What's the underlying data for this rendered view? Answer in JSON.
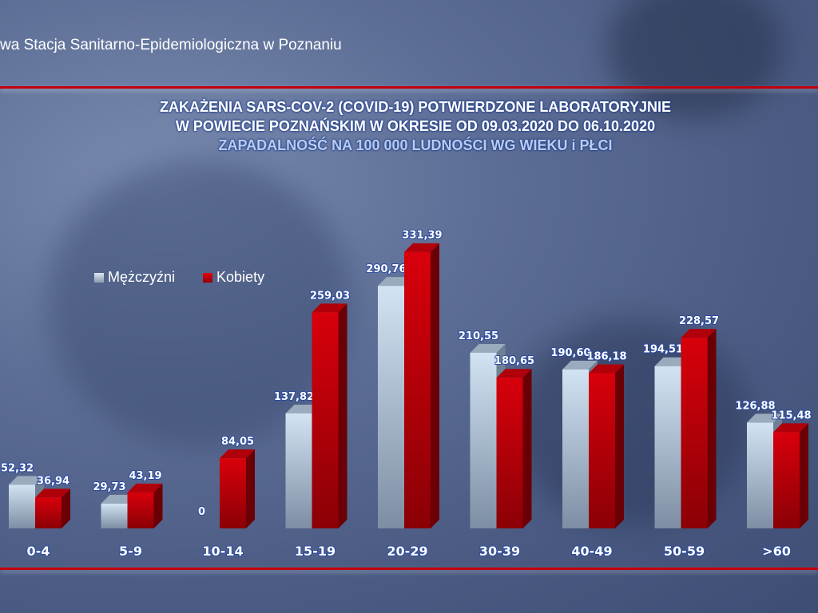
{
  "header": {
    "org_name": "wa Stacja Sanitarno-Epidemiologiczna w Poznaniu"
  },
  "colors": {
    "men": "#b7cde3",
    "women": "#c8000a",
    "rule": "#c4000c"
  },
  "chart_data": {
    "type": "bar",
    "title": [
      "ZAKAŻENIA SARS-COV-2 (COVID-19) POTWIERDZONE LABORATORYJNIE",
      "W POWIECIE POZNAŃSKIM W OKRESIE OD 09.03.2020 DO 06.10.2020"
    ],
    "subtitle": "ZAPADALNOŚĆ NA 100 000 LUDNOŚCI WG WIEKU i PŁCI",
    "categories": [
      "0-4",
      "5-9",
      "10-14",
      "15-19",
      "20-29",
      "30-39",
      "40-49",
      "50-59",
      ">60"
    ],
    "series": [
      {
        "name": "Mężczyźni",
        "values": [
          52.32,
          29.73,
          0,
          137.82,
          290.76,
          210.55,
          190.6,
          194.51,
          126.88
        ],
        "labels": [
          "52,32",
          "29,73",
          "0",
          "137,82",
          "290,76",
          "210,55",
          "190,60",
          "194,51",
          "126,88"
        ]
      },
      {
        "name": "Kobiety",
        "values": [
          36.94,
          43.19,
          84.05,
          259.03,
          331.39,
          180.65,
          186.18,
          228.57,
          115.48
        ],
        "labels": [
          "36,94",
          "43,19",
          "84,05",
          "259,03",
          "331,39",
          "180,65",
          "186,18",
          "228,57",
          "115,48"
        ]
      }
    ],
    "legend": "top-left",
    "grid": false,
    "style": "3d"
  }
}
